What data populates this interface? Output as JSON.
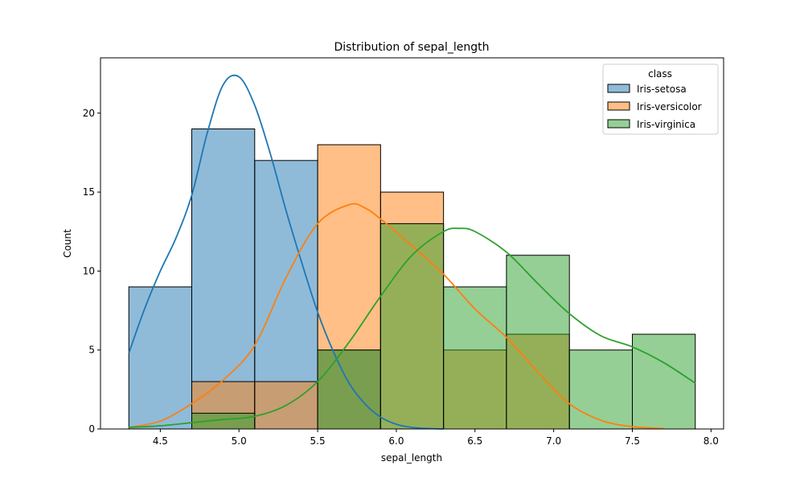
{
  "chart_data": {
    "type": "histogram",
    "title": "Distribution of sepal_length",
    "xlabel": "sepal_length",
    "ylabel": "Count",
    "xlim": [
      4.12,
      8.08
    ],
    "ylim": [
      0,
      23.5
    ],
    "xticks": [
      4.5,
      5.0,
      5.5,
      6.0,
      6.5,
      7.0,
      7.5,
      8.0
    ],
    "xtick_labels": [
      "4.5",
      "5.0",
      "5.5",
      "6.0",
      "6.5",
      "7.0",
      "7.5",
      "8.0"
    ],
    "yticks": [
      0,
      5,
      10,
      15,
      20
    ],
    "ytick_labels": [
      "0",
      "5",
      "10",
      "15",
      "20"
    ],
    "bin_edges": [
      4.3,
      4.7,
      5.1,
      5.5,
      5.9,
      6.3,
      6.7,
      7.1,
      7.5,
      7.9
    ],
    "grid": false,
    "legend": {
      "title": "class",
      "position": "top-right"
    },
    "series": [
      {
        "name": "Iris-setosa",
        "color": "#1f77b4",
        "counts": [
          9,
          19,
          17,
          5,
          0,
          0,
          0,
          0,
          0
        ],
        "kde": {
          "x": [
            4.3,
            4.4,
            4.5,
            4.6,
            4.7,
            4.8,
            4.9,
            5.0,
            5.1,
            5.2,
            5.3,
            5.4,
            5.5,
            5.6,
            5.7,
            5.8,
            5.9,
            6.0,
            6.1,
            6.2,
            6.3
          ],
          "y": [
            4.8,
            7.6,
            10.0,
            12.1,
            14.8,
            18.8,
            21.8,
            22.3,
            20.5,
            17.4,
            13.8,
            10.5,
            7.4,
            4.9,
            2.9,
            1.6,
            0.75,
            0.3,
            0.1,
            0.03,
            0.0
          ]
        }
      },
      {
        "name": "Iris-versicolor",
        "color": "#ff7f0e",
        "counts": [
          0,
          3,
          3,
          18,
          15,
          5,
          6,
          0,
          0
        ],
        "kde": {
          "x": [
            4.3,
            4.5,
            4.7,
            4.9,
            5.1,
            5.3,
            5.5,
            5.7,
            5.8,
            5.9,
            6.1,
            6.3,
            6.5,
            6.7,
            6.9,
            7.1,
            7.3,
            7.5,
            7.7
          ],
          "y": [
            0.1,
            0.5,
            1.6,
            3.1,
            5.3,
            9.6,
            13.0,
            14.2,
            14.0,
            13.3,
            11.6,
            9.8,
            7.6,
            5.8,
            3.6,
            1.6,
            0.55,
            0.15,
            0.03
          ]
        }
      },
      {
        "name": "Iris-virginica",
        "color": "#2ca02c",
        "counts": [
          0,
          1,
          0,
          5,
          13,
          9,
          11,
          5,
          6
        ],
        "kde": {
          "x": [
            4.3,
            4.5,
            4.7,
            4.9,
            5.1,
            5.3,
            5.5,
            5.7,
            5.9,
            6.1,
            6.3,
            6.4,
            6.5,
            6.7,
            6.9,
            7.1,
            7.3,
            7.5,
            7.7,
            7.9
          ],
          "y": [
            0.1,
            0.2,
            0.4,
            0.6,
            0.8,
            1.5,
            3.0,
            5.5,
            8.4,
            11.0,
            12.5,
            12.7,
            12.5,
            11.2,
            9.2,
            7.3,
            5.9,
            5.2,
            4.2,
            2.9
          ]
        }
      }
    ]
  }
}
